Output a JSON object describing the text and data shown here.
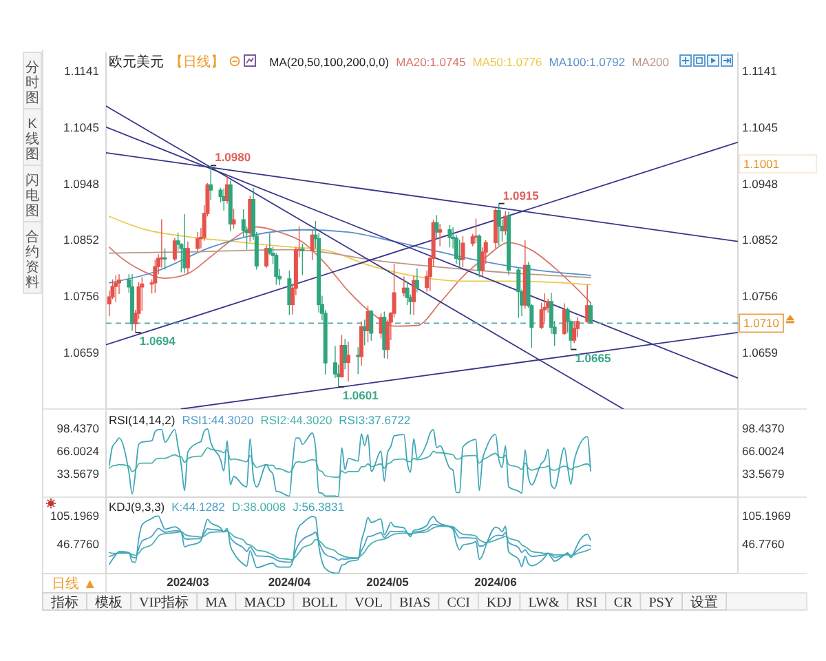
{
  "chart_data": [
    {
      "type": "candlestick",
      "title": "欧元美元",
      "subtitle": "【日线】",
      "legend_title": "MA(20,50,100,200,0,0)",
      "legend": "top right",
      "tick_labels": "y",
      "x": [
        "2024-02-06",
        "2024-02-07",
        "2024-02-08",
        "2024-02-09",
        "2024-02-12",
        "2024-02-13",
        "2024-02-14",
        "2024-02-15",
        "2024-02-16",
        "2024-02-19",
        "2024-02-20",
        "2024-02-21",
        "2024-02-22",
        "2024-02-23",
        "2024-02-26",
        "2024-02-27",
        "2024-02-28",
        "2024-02-29",
        "2024-03-01",
        "2024-03-04",
        "2024-03-05",
        "2024-03-06",
        "2024-03-07",
        "2024-03-08",
        "2024-03-11",
        "2024-03-12",
        "2024-03-13",
        "2024-03-14",
        "2024-03-15",
        "2024-03-18",
        "2024-03-19",
        "2024-03-20",
        "2024-03-21",
        "2024-03-22",
        "2024-03-25",
        "2024-03-26",
        "2024-03-27",
        "2024-03-28",
        "2024-03-29",
        "2024-04-01",
        "2024-04-02",
        "2024-04-03",
        "2024-04-04",
        "2024-04-05",
        "2024-04-08",
        "2024-04-09",
        "2024-04-10",
        "2024-04-11",
        "2024-04-12",
        "2024-04-15",
        "2024-04-16",
        "2024-04-17",
        "2024-04-18",
        "2024-04-19",
        "2024-04-22",
        "2024-04-23",
        "2024-04-24",
        "2024-04-25",
        "2024-04-26",
        "2024-04-29",
        "2024-04-30",
        "2024-05-01",
        "2024-05-02",
        "2024-05-03",
        "2024-05-06",
        "2024-05-07",
        "2024-05-08",
        "2024-05-09",
        "2024-05-10",
        "2024-05-13",
        "2024-05-14",
        "2024-05-15",
        "2024-05-16",
        "2024-05-17",
        "2024-05-20",
        "2024-05-21",
        "2024-05-22",
        "2024-05-23",
        "2024-05-24",
        "2024-05-27",
        "2024-05-28",
        "2024-05-29",
        "2024-05-30",
        "2024-05-31",
        "2024-06-03",
        "2024-06-04",
        "2024-06-05",
        "2024-06-06",
        "2024-06-07",
        "2024-06-10",
        "2024-06-11",
        "2024-06-12",
        "2024-06-13",
        "2024-06-14",
        "2024-06-17",
        "2024-06-18",
        "2024-06-19",
        "2024-06-20",
        "2024-06-21",
        "2024-06-24",
        "2024-06-25",
        "2024-06-26",
        "2024-06-27",
        "2024-06-28",
        "2024-07-01",
        "2024-07-02"
      ],
      "ohlc": [
        [
          1.0743,
          1.0766,
          1.0722,
          1.0755
        ],
        [
          1.0755,
          1.0785,
          1.0751,
          1.0773
        ],
        [
          1.0773,
          1.0792,
          1.0746,
          1.0779
        ],
        [
          1.0779,
          1.0794,
          1.076,
          1.0784
        ],
        [
          1.0784,
          1.0794,
          1.0762,
          1.0772
        ],
        [
          1.0772,
          1.0794,
          1.0697,
          1.0709
        ],
        [
          1.0709,
          1.0733,
          1.0694,
          1.0727
        ],
        [
          1.0727,
          1.078,
          1.0717,
          1.0772
        ],
        [
          1.0772,
          1.0789,
          1.0731,
          1.0777
        ],
        [
          1.0777,
          1.0785,
          1.0761,
          1.0779
        ],
        [
          1.0779,
          1.0819,
          1.0762,
          1.0807
        ],
        [
          1.0807,
          1.0828,
          1.0794,
          1.0821
        ],
        [
          1.0821,
          1.0888,
          1.0805,
          1.0822
        ],
        [
          1.0822,
          1.0838,
          1.0802,
          1.082
        ],
        [
          1.082,
          1.0856,
          1.0817,
          1.0851
        ],
        [
          1.0851,
          1.0865,
          1.0834,
          1.0845
        ],
        [
          1.0845,
          1.0847,
          1.0797,
          1.0838
        ],
        [
          1.0838,
          1.0897,
          1.0796,
          1.0805
        ],
        [
          1.0805,
          1.085,
          1.0795,
          1.0838
        ],
        [
          1.0838,
          1.0866,
          1.0833,
          1.0855
        ],
        [
          1.0855,
          1.0873,
          1.0838,
          1.0857
        ],
        [
          1.0857,
          1.0912,
          1.0851,
          1.0898
        ],
        [
          1.0898,
          1.095,
          1.0893,
          1.0947
        ],
        [
          1.0947,
          1.098,
          1.0921,
          1.0938
        ],
        [
          1.0938,
          1.0942,
          1.0917,
          1.0927
        ],
        [
          1.0927,
          1.0941,
          1.0903,
          1.092
        ],
        [
          1.092,
          1.0964,
          1.0915,
          1.0947
        ],
        [
          1.0947,
          1.0954,
          1.0868,
          1.088
        ],
        [
          1.088,
          1.0906,
          1.0872,
          1.0887
        ],
        [
          1.0887,
          1.0905,
          1.0858,
          1.0869
        ],
        [
          1.0869,
          1.0876,
          1.0836,
          1.0865
        ],
        [
          1.0865,
          1.0928,
          1.085,
          1.0922
        ],
        [
          1.0922,
          1.0942,
          1.0853,
          1.0859
        ],
        [
          1.0859,
          1.0866,
          1.0802,
          1.0808
        ],
        [
          1.0808,
          1.0843,
          1.0805,
          1.0838
        ],
        [
          1.0838,
          1.0864,
          1.0827,
          1.083
        ],
        [
          1.083,
          1.0841,
          1.0812,
          1.0826
        ],
        [
          1.0826,
          1.083,
          1.0776,
          1.079
        ],
        [
          1.079,
          1.0803,
          1.0775,
          1.0786
        ],
        [
          1.0786,
          1.08,
          1.0724,
          1.0742
        ],
        [
          1.0742,
          1.0778,
          1.0725,
          1.077
        ],
        [
          1.077,
          1.084,
          1.0758,
          1.0836
        ],
        [
          1.0836,
          1.0876,
          1.0823,
          1.0837
        ],
        [
          1.0837,
          1.0846,
          1.0792,
          1.0834
        ],
        [
          1.0834,
          1.087,
          1.0818,
          1.0861
        ],
        [
          1.0861,
          1.0885,
          1.0838,
          1.0855
        ],
        [
          1.0855,
          1.0865,
          1.0728,
          1.0742
        ],
        [
          1.0742,
          1.0757,
          1.0715,
          1.0727
        ],
        [
          1.0727,
          1.0733,
          1.0622,
          1.0642
        ],
        [
          1.0642,
          1.0671,
          1.0616,
          1.0623
        ],
        [
          1.0623,
          1.0639,
          1.0601,
          1.0618
        ],
        [
          1.0618,
          1.069,
          1.0617,
          1.0672
        ],
        [
          1.0672,
          1.0683,
          1.0631,
          1.0643
        ],
        [
          1.0643,
          1.0678,
          1.061,
          1.0655
        ],
        [
          1.0655,
          1.0669,
          1.0623,
          1.0653
        ],
        [
          1.0653,
          1.0713,
          1.0637,
          1.0704
        ],
        [
          1.0704,
          1.0716,
          1.0672,
          1.0697
        ],
        [
          1.0697,
          1.074,
          1.0677,
          1.073
        ],
        [
          1.073,
          1.0733,
          1.068,
          1.0693
        ],
        [
          1.0693,
          1.0727,
          1.0684,
          1.072
        ],
        [
          1.072,
          1.073,
          1.065,
          1.0665
        ],
        [
          1.0665,
          1.0716,
          1.0649,
          1.0712
        ],
        [
          1.0712,
          1.0729,
          1.0681,
          1.0727
        ],
        [
          1.0727,
          1.0812,
          1.072,
          1.0762
        ],
        [
          1.0762,
          1.079,
          1.0756,
          1.077
        ],
        [
          1.077,
          1.078,
          1.0741,
          1.0754
        ],
        [
          1.0754,
          1.0759,
          1.0725,
          1.0747
        ],
        [
          1.0747,
          1.0791,
          1.0724,
          1.0783
        ],
        [
          1.0783,
          1.0804,
          1.0763,
          1.0771
        ],
        [
          1.0771,
          1.08,
          1.0764,
          1.079
        ],
        [
          1.079,
          1.0825,
          1.0765,
          1.0821
        ],
        [
          1.0821,
          1.0887,
          1.0807,
          1.0882
        ],
        [
          1.0882,
          1.0895,
          1.0853,
          1.0866
        ],
        [
          1.0866,
          1.088,
          1.0842,
          1.087
        ],
        [
          1.087,
          1.0878,
          1.084,
          1.0857
        ],
        [
          1.0857,
          1.0874,
          1.0838,
          1.0856
        ],
        [
          1.0856,
          1.0861,
          1.0812,
          1.0821
        ],
        [
          1.0821,
          1.0853,
          1.0805,
          1.0819
        ],
        [
          1.0819,
          1.0859,
          1.0806,
          1.0847
        ],
        [
          1.0847,
          1.0863,
          1.0842,
          1.0858
        ],
        [
          1.0858,
          1.0889,
          1.0847,
          1.0859
        ],
        [
          1.0859,
          1.0862,
          1.0789,
          1.08
        ],
        [
          1.08,
          1.084,
          1.079,
          1.0832
        ],
        [
          1.0832,
          1.0852,
          1.0812,
          1.0848
        ],
        [
          1.0848,
          1.0908,
          1.0838,
          1.0903
        ],
        [
          1.0903,
          1.0915,
          1.0843,
          1.0876
        ],
        [
          1.0876,
          1.0888,
          1.085,
          1.0868
        ],
        [
          1.0868,
          1.0902,
          1.0861,
          1.0893
        ],
        [
          1.0893,
          1.0901,
          1.0792,
          1.0801
        ],
        [
          1.0801,
          1.0805,
          1.0719,
          1.0764
        ],
        [
          1.0764,
          1.0768,
          1.0722,
          1.0741
        ],
        [
          1.0741,
          1.0852,
          1.0735,
          1.0809
        ],
        [
          1.0809,
          1.0815,
          1.0736,
          1.074
        ],
        [
          1.074,
          1.0743,
          1.0668,
          1.0703
        ],
        [
          1.0703,
          1.0745,
          1.07,
          1.0733
        ],
        [
          1.0733,
          1.0761,
          1.0712,
          1.0737
        ],
        [
          1.0737,
          1.0752,
          1.0728,
          1.0747
        ],
        [
          1.0747,
          1.0762,
          1.0692,
          1.0703
        ],
        [
          1.0703,
          1.0714,
          1.0671,
          1.0692
        ],
        [
          1.0692,
          1.0744,
          1.069,
          1.0733
        ],
        [
          1.0733,
          1.0737,
          1.0694,
          1.0713
        ],
        [
          1.0713,
          1.0717,
          1.0665,
          1.0681
        ],
        [
          1.0681,
          1.0714,
          1.0676,
          1.0701
        ],
        [
          1.0701,
          1.072,
          1.0686,
          1.0713
        ],
        [
          1.0713,
          1.0776,
          1.071,
          1.074
        ],
        [
          1.074,
          1.0745,
          1.0709,
          1.071
        ]
      ],
      "colors": [
        "#e5534b",
        "#e5534b",
        "#e5534b",
        "#e5534b",
        "#2fa57d",
        "#2fa57d",
        "#e5534b",
        "#e5534b",
        "#e5534b",
        "#e5534b",
        "#e5534b",
        "#e5534b",
        "#e5534b",
        "#2fa57d",
        "#e5534b",
        "#2fa57d",
        "#2fa57d",
        "#2fa57d",
        "#e5534b",
        "#e5534b",
        "#e5534b",
        "#e5534b",
        "#e5534b",
        "#2fa57d",
        "#2fa57d",
        "#2fa57d",
        "#e5534b",
        "#2fa57d",
        "#e5534b",
        "#2fa57d",
        "#2fa57d",
        "#e5534b",
        "#2fa57d",
        "#2fa57d",
        "#e5534b",
        "#2fa57d",
        "#2fa57d",
        "#2fa57d",
        "#2fa57d",
        "#2fa57d",
        "#e5534b",
        "#e5534b",
        "#e5534b",
        "#2fa57d",
        "#e5534b",
        "#2fa57d",
        "#2fa57d",
        "#2fa57d",
        "#2fa57d",
        "#2fa57d",
        "#2fa57d",
        "#e5534b",
        "#2fa57d",
        "#e5534b",
        "#2fa57d",
        "#e5534b",
        "#2fa57d",
        "#e5534b",
        "#2fa57d",
        "#e5534b",
        "#2fa57d",
        "#e5534b",
        "#e5534b",
        "#e5534b",
        "#e5534b",
        "#2fa57d",
        "#2fa57d",
        "#e5534b",
        "#2fa57d",
        "#e5534b",
        "#e5534b",
        "#e5534b",
        "#2fa57d",
        "#e5534b",
        "#2fa57d",
        "#2fa57d",
        "#2fa57d",
        "#2fa57d",
        "#e5534b",
        "#e5534b",
        "#e5534b",
        "#2fa57d",
        "#e5534b",
        "#e5534b",
        "#e5534b",
        "#2fa57d",
        "#2fa57d",
        "#e5534b",
        "#2fa57d",
        "#2fa57d",
        "#2fa57d",
        "#e5534b",
        "#2fa57d",
        "#2fa57d",
        "#e5534b",
        "#e5534b",
        "#e5534b",
        "#2fa57d",
        "#2fa57d",
        "#e5534b",
        "#2fa57d",
        "#2fa57d",
        "#e5534b",
        "#e5534b",
        "#e5534b",
        "#2fa57d"
      ],
      "xlim": [
        "2024-02-05",
        "2024-08-16"
      ],
      "ylim": [
        1.0563,
        1.1174
      ],
      "yticks": [
        1.1141,
        1.1045,
        1.0948,
        1.0852,
        1.0756,
        1.0659
      ],
      "y2lim": [
        1.0563,
        1.1174
      ],
      "y2ticks": [
        1.1141,
        1.1045,
        1.0948,
        1.0852,
        1.0756,
        1.0659
      ],
      "series": [
        {
          "type": "line",
          "name": "MA20:1.0745",
          "color": "#d9766a",
          "x": [
            "2024-02-06",
            "2024-02-09",
            "2024-02-16",
            "2024-02-23",
            "2024-03-01",
            "2024-03-08",
            "2024-03-15",
            "2024-03-22",
            "2024-03-29",
            "2024-04-05",
            "2024-04-12",
            "2024-04-19",
            "2024-04-26",
            "2024-05-03",
            "2024-05-10",
            "2024-05-17",
            "2024-05-24",
            "2024-05-31",
            "2024-06-07",
            "2024-06-14",
            "2024-06-21",
            "2024-06-28",
            "2024-07-02"
          ],
          "values": [
            1.084,
            1.0825,
            1.08,
            1.0787,
            1.0795,
            1.0824,
            1.0855,
            1.0875,
            1.0866,
            1.0849,
            1.0812,
            1.0765,
            1.0728,
            1.0705,
            1.0706,
            1.0745,
            1.079,
            1.0823,
            1.0848,
            1.0835,
            1.0805,
            1.0768,
            1.0745
          ]
        },
        {
          "type": "line",
          "name": "MA50:1.0776",
          "color": "#ecc94b",
          "x": [
            "2024-02-06",
            "2024-02-16",
            "2024-03-01",
            "2024-03-15",
            "2024-03-29",
            "2024-04-12",
            "2024-04-26",
            "2024-05-10",
            "2024-05-24",
            "2024-06-07",
            "2024-06-21",
            "2024-07-02"
          ],
          "values": [
            1.0893,
            1.0872,
            1.0858,
            1.085,
            1.0842,
            1.0835,
            1.0808,
            1.079,
            1.0782,
            1.0782,
            1.078,
            1.0776
          ]
        },
        {
          "type": "line",
          "name": "MA100:1.0792",
          "color": "#5a8fc8",
          "x": [
            "2024-02-06",
            "2024-02-20",
            "2024-03-08",
            "2024-03-22",
            "2024-04-05",
            "2024-04-19",
            "2024-05-03",
            "2024-05-17",
            "2024-05-31",
            "2024-06-14",
            "2024-07-02"
          ],
          "values": [
            1.0779,
            1.0798,
            1.084,
            1.0862,
            1.087,
            1.0866,
            1.085,
            1.0832,
            1.0815,
            1.0802,
            1.0792
          ]
        },
        {
          "type": "line",
          "name": "MA200",
          "color": "#b8978a",
          "x": [
            "2024-02-06",
            "2024-03-01",
            "2024-04-01",
            "2024-05-01",
            "2024-06-03",
            "2024-07-02"
          ],
          "values": [
            1.083,
            1.0832,
            1.0836,
            1.0815,
            1.0798,
            1.0788
          ]
        },
        {
          "type": "line",
          "color": "#36368c",
          "x": [
            "2024-02-05",
            "2024-07-12"
          ],
          "values": [
            1.1082,
            1.0563
          ]
        },
        {
          "type": "line",
          "color": "#36368c",
          "x": [
            "2024-02-05",
            "2024-08-16"
          ],
          "values": [
            1.1046,
            1.0616
          ]
        },
        {
          "type": "line",
          "color": "#36368c",
          "x": [
            "2024-02-05",
            "2024-08-16"
          ],
          "values": [
            1.1002,
            1.085
          ]
        },
        {
          "type": "line",
          "color": "#36368c",
          "x": [
            "2024-02-05",
            "2024-08-16"
          ],
          "values": [
            1.0673,
            1.102
          ]
        },
        {
          "type": "line",
          "color": "#36368c",
          "x": [
            "2024-02-28",
            "2024-08-16"
          ],
          "values": [
            1.0563,
            1.0694
          ]
        }
      ],
      "ref_lines": [
        {
          "axis": "y",
          "value": 1.071,
          "label": "1.0710",
          "color": "#4fa8a8",
          "line_style": "dashed"
        }
      ],
      "annotations": [
        "分时图",
        "K线图",
        "闪电图",
        "合约资料",
        {
          "text": "1.0980",
          "x": "2024-03-08",
          "y": 1.098
        },
        {
          "text": "1.0915",
          "x": "2024-06-04",
          "y": 1.0915
        },
        {
          "text": "1.0694",
          "x": "2024-02-14",
          "y": 1.0694
        },
        {
          "text": "1.0601",
          "x": "2024-04-16",
          "y": 1.0601
        },
        {
          "text": "1.0665",
          "x": "2024-06-26",
          "y": 1.0665
        },
        "1.1001"
      ]
    },
    {
      "type": "line",
      "legend_title": "RSI(14,14,2)",
      "legend": "top left",
      "tick_labels": "y",
      "x": [
        "2024-02-06",
        "2024-02-07",
        "2024-02-08",
        "2024-02-09",
        "2024-02-12",
        "2024-02-13",
        "2024-02-14",
        "2024-02-15",
        "2024-02-16",
        "2024-02-19",
        "2024-02-20",
        "2024-02-21",
        "2024-02-22",
        "2024-02-23",
        "2024-02-26",
        "2024-02-27",
        "2024-02-28",
        "2024-02-29",
        "2024-03-01",
        "2024-03-04",
        "2024-03-05",
        "2024-03-06",
        "2024-03-07",
        "2024-03-08",
        "2024-03-11",
        "2024-03-12",
        "2024-03-13",
        "2024-03-14",
        "2024-03-15",
        "2024-03-18",
        "2024-03-19",
        "2024-03-20",
        "2024-03-21",
        "2024-03-22",
        "2024-03-25",
        "2024-03-26",
        "2024-03-27",
        "2024-03-28",
        "2024-03-29",
        "2024-04-01",
        "2024-04-02",
        "2024-04-03",
        "2024-04-04",
        "2024-04-05",
        "2024-04-08",
        "2024-04-09",
        "2024-04-10",
        "2024-04-11",
        "2024-04-12",
        "2024-04-15",
        "2024-04-16",
        "2024-04-17",
        "2024-04-18",
        "2024-04-19",
        "2024-04-22",
        "2024-04-23",
        "2024-04-24",
        "2024-04-25",
        "2024-04-26",
        "2024-04-29",
        "2024-04-30",
        "2024-05-01",
        "2024-05-02",
        "2024-05-03",
        "2024-05-06",
        "2024-05-07",
        "2024-05-08",
        "2024-05-09",
        "2024-05-10",
        "2024-05-13",
        "2024-05-14",
        "2024-05-15",
        "2024-05-16",
        "2024-05-17",
        "2024-05-20",
        "2024-05-21",
        "2024-05-22",
        "2024-05-23",
        "2024-05-24",
        "2024-05-27",
        "2024-05-28",
        "2024-05-29",
        "2024-05-30",
        "2024-05-31",
        "2024-06-03",
        "2024-06-04",
        "2024-06-05",
        "2024-06-06",
        "2024-06-07",
        "2024-06-10",
        "2024-06-11",
        "2024-06-12",
        "2024-06-13",
        "2024-06-14",
        "2024-06-17",
        "2024-06-18",
        "2024-06-19",
        "2024-06-20",
        "2024-06-21",
        "2024-06-24",
        "2024-06-25",
        "2024-06-26",
        "2024-06-27",
        "2024-06-28",
        "2024-07-01",
        "2024-07-02"
      ],
      "xlim": [
        "2024-02-05",
        "2024-08-16"
      ],
      "ylim": [
        0.5,
        124.5
      ],
      "yticks": [
        {
          "value": 98.437,
          "label": "98.4370"
        },
        66.0024,
        33.5679
      ],
      "y2lim": [
        0.5,
        124.5
      ],
      "y2ticks": [
        {
          "value": 98.437,
          "label": "98.4370"
        },
        66.0024,
        33.5679
      ],
      "series": [
        {
          "name": "RSI1:44.3020",
          "color": "#4e9ec8",
          "values": [
            null,
            null,
            null,
            null,
            null,
            null,
            null,
            null,
            null,
            null,
            null,
            null,
            null,
            null,
            null,
            null,
            null,
            null,
            null,
            null,
            null,
            null,
            null,
            null,
            null,
            null,
            null,
            null,
            null,
            null,
            null,
            null,
            null,
            null,
            null,
            null,
            null,
            null,
            null,
            null,
            null,
            null,
            null,
            null,
            null,
            null,
            null,
            null,
            null,
            null,
            null,
            null,
            null,
            null,
            null,
            null,
            null,
            null,
            null,
            null,
            null,
            null,
            null,
            null,
            null,
            null,
            null,
            null,
            null,
            null,
            null,
            null,
            null,
            null,
            null,
            null,
            null,
            null,
            null,
            null,
            null,
            null,
            null,
            null,
            null,
            null,
            null,
            null,
            null,
            null,
            null,
            null,
            null,
            null,
            null,
            null,
            null,
            null,
            null,
            null,
            null,
            null,
            null,
            null,
            null,
            null
          ]
        },
        {
          "name": "RSI2:44.3020",
          "color": "#4bb3ad",
          "values": [
            42,
            45,
            46,
            47,
            45,
            37,
            40,
            48,
            49,
            49,
            54,
            56,
            56,
            56,
            61,
            59,
            58,
            50,
            56,
            59,
            59,
            65,
            71,
            69,
            66,
            64,
            68,
            54,
            55,
            52,
            51,
            60,
            49,
            43,
            47,
            46,
            46,
            41,
            41,
            36,
            41,
            50,
            51,
            50,
            54,
            53,
            39,
            37,
            31,
            29,
            29,
            38,
            35,
            37,
            37,
            44,
            44,
            48,
            44,
            48,
            42,
            48,
            50,
            54,
            55,
            52,
            51,
            56,
            54,
            57,
            60,
            66,
            64,
            64,
            62,
            61,
            55,
            55,
            59,
            60,
            60,
            49,
            54,
            56,
            63,
            58,
            57,
            60,
            47,
            43,
            40,
            49,
            42,
            39,
            43,
            43,
            45,
            40,
            39,
            45,
            43,
            40,
            43,
            44,
            48,
            44
          ]
        },
        {
          "name": "RSI3:37.6722",
          "color": "#3ea6b8",
          "values": [
            46,
            73,
            79,
            85,
            36,
            5,
            36,
            76,
            79,
            81,
            94,
            97,
            97,
            79,
            97,
            73,
            46,
            10,
            65,
            78,
            80,
            95,
            98,
            79,
            54,
            38,
            81,
            18,
            30,
            17,
            15,
            84,
            30,
            15,
            47,
            39,
            33,
            9,
            8,
            2,
            50,
            85,
            85,
            76,
            92,
            71,
            7,
            6,
            2,
            2,
            1,
            71,
            40,
            56,
            52,
            91,
            74,
            90,
            37,
            66,
            23,
            64,
            73,
            88,
            90,
            50,
            36,
            84,
            56,
            78,
            92,
            97,
            71,
            74,
            42,
            39,
            7,
            7,
            72,
            82,
            83,
            10,
            54,
            69,
            90,
            54,
            43,
            74,
            15,
            9,
            6,
            68,
            29,
            18,
            49,
            54,
            69,
            18,
            13,
            71,
            43,
            19,
            52,
            68,
            87,
            38
          ]
        }
      ]
    },
    {
      "type": "line",
      "legend_title": "KDJ(9,3,3)",
      "legend": "top left",
      "x": [
        "2024-02-06",
        "2024-02-07",
        "2024-02-08",
        "2024-02-09",
        "2024-02-12",
        "2024-02-13",
        "2024-02-14",
        "2024-02-15",
        "2024-02-16",
        "2024-02-19",
        "2024-02-20",
        "2024-02-21",
        "2024-02-22",
        "2024-02-23",
        "2024-02-26",
        "2024-02-27",
        "2024-02-28",
        "2024-02-29",
        "2024-03-01",
        "2024-03-04",
        "2024-03-05",
        "2024-03-06",
        "2024-03-07",
        "2024-03-08",
        "2024-03-11",
        "2024-03-12",
        "2024-03-13",
        "2024-03-14",
        "2024-03-15",
        "2024-03-18",
        "2024-03-19",
        "2024-03-20",
        "2024-03-21",
        "2024-03-22",
        "2024-03-25",
        "2024-03-26",
        "2024-03-27",
        "2024-03-28",
        "2024-03-29",
        "2024-04-01",
        "2024-04-02",
        "2024-04-03",
        "2024-04-04",
        "2024-04-05",
        "2024-04-08",
        "2024-04-09",
        "2024-04-10",
        "2024-04-11",
        "2024-04-12",
        "2024-04-15",
        "2024-04-16",
        "2024-04-17",
        "2024-04-18",
        "2024-04-19",
        "2024-04-22",
        "2024-04-23",
        "2024-04-24",
        "2024-04-25",
        "2024-04-26",
        "2024-04-29",
        "2024-04-30",
        "2024-05-01",
        "2024-05-02",
        "2024-05-03",
        "2024-05-06",
        "2024-05-07",
        "2024-05-08",
        "2024-05-09",
        "2024-05-10",
        "2024-05-13",
        "2024-05-14",
        "2024-05-15",
        "2024-05-16",
        "2024-05-17",
        "2024-05-20",
        "2024-05-21",
        "2024-05-22",
        "2024-05-23",
        "2024-05-24",
        "2024-05-27",
        "2024-05-28",
        "2024-05-29",
        "2024-05-30",
        "2024-05-31",
        "2024-06-03",
        "2024-06-04",
        "2024-06-05",
        "2024-06-06",
        "2024-06-07",
        "2024-06-10",
        "2024-06-11",
        "2024-06-12",
        "2024-06-13",
        "2024-06-14",
        "2024-06-17",
        "2024-06-18",
        "2024-06-19",
        "2024-06-20",
        "2024-06-21",
        "2024-06-24",
        "2024-06-25",
        "2024-06-26",
        "2024-06-27",
        "2024-06-28",
        "2024-07-01",
        "2024-07-02"
      ],
      "xlim": [
        "2024-02-05",
        "2024-08-16"
      ],
      "xticks": [
        {
          "value": "2024-03-01",
          "label": "2024/03"
        },
        {
          "value": "2024-04-01",
          "label": "2024/04"
        },
        {
          "value": "2024-05-01",
          "label": "2024/05"
        },
        {
          "value": "2024-06-03",
          "label": "2024/06"
        }
      ],
      "ylim": [
        -12,
        143.4
      ],
      "yticks": [
        105.1969,
        {
          "value": 46.776,
          "label": "46.7760"
        }
      ],
      "y2lim": [
        -12,
        143.4
      ],
      "y2ticks": [
        105.1969,
        {
          "value": 46.776,
          "label": "46.7760"
        }
      ],
      "series": [
        {
          "name": "K:44.1282",
          "color": "#4e9ec8",
          "values": [
            23,
            25,
            28,
            30,
            30,
            22,
            20,
            39,
            54,
            64,
            73,
            80,
            76,
            72,
            75,
            75,
            73,
            59,
            58,
            59,
            59,
            69,
            79,
            78,
            76,
            73,
            76,
            61,
            53,
            40,
            33,
            42,
            34,
            24,
            23,
            22,
            20,
            16,
            13,
            11,
            15,
            36,
            49,
            57,
            68,
            72,
            52,
            37,
            27,
            19,
            15,
            18,
            17,
            18,
            19,
            34,
            47,
            63,
            64,
            71,
            61,
            67,
            74,
            73,
            74,
            70,
            67,
            72,
            73,
            78,
            84,
            88,
            87,
            86,
            83,
            81,
            69,
            60,
            61,
            60,
            60,
            44,
            44,
            49,
            65,
            66,
            65,
            71,
            51,
            41,
            31,
            36,
            28,
            23,
            25,
            26,
            29,
            26,
            21,
            26,
            28,
            24,
            28,
            35,
            46,
            44
          ]
        },
        {
          "name": "D:38.0008",
          "color": "#4bb3ad",
          "values": [
            31,
            29,
            29,
            29,
            29,
            27,
            25,
            29,
            38,
            47,
            55,
            64,
            68,
            69,
            71,
            72,
            73,
            68,
            65,
            63,
            62,
            64,
            69,
            72,
            73,
            73,
            74,
            70,
            64,
            56,
            48,
            46,
            42,
            36,
            32,
            29,
            26,
            22,
            19,
            17,
            16,
            23,
            31,
            40,
            49,
            57,
            55,
            49,
            42,
            34,
            28,
            25,
            22,
            21,
            20,
            25,
            32,
            42,
            49,
            57,
            58,
            61,
            65,
            68,
            70,
            70,
            69,
            70,
            71,
            73,
            77,
            81,
            83,
            84,
            84,
            83,
            78,
            72,
            68,
            66,
            64,
            57,
            53,
            51,
            56,
            59,
            61,
            64,
            60,
            54,
            46,
            43,
            38,
            33,
            30,
            29,
            29,
            28,
            26,
            26,
            26,
            25,
            26,
            29,
            35,
            38
          ]
        },
        {
          "name": "J:56.3831",
          "color": "#3ea6b8",
          "values": [
            7,
            17,
            26,
            33,
            31,
            12,
            11,
            59,
            87,
            100,
            104,
            105,
            91,
            78,
            83,
            80,
            73,
            42,
            45,
            50,
            55,
            79,
            98,
            91,
            81,
            73,
            80,
            44,
            30,
            7,
            3,
            34,
            18,
            0,
            6,
            8,
            9,
            3,
            1,
            1,
            12,
            63,
            84,
            90,
            104,
            102,
            45,
            12,
            -2,
            -11,
            -11,
            5,
            7,
            12,
            16,
            54,
            77,
            102,
            92,
            99,
            67,
            78,
            92,
            84,
            81,
            71,
            63,
            76,
            77,
            86,
            98,
            104,
            95,
            90,
            83,
            78,
            50,
            36,
            46,
            50,
            53,
            17,
            25,
            44,
            82,
            80,
            73,
            84,
            32,
            17,
            2,
            23,
            8,
            4,
            14,
            21,
            29,
            21,
            13,
            26,
            30,
            20,
            32,
            47,
            68,
            56
          ]
        }
      ],
      "annotations": [
        "日线 ▲",
        "指标",
        "模板",
        "VIP指标",
        "MA",
        "MACD",
        "BOLL",
        "VOL",
        "BIAS",
        "CCI",
        "KDJ",
        "LW&",
        "RSI",
        "CR",
        "PSY",
        "设置"
      ]
    }
  ]
}
